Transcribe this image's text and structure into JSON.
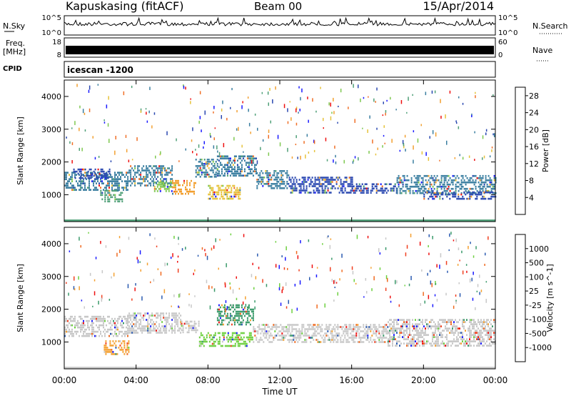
{
  "header": {
    "station": "Kapuskasing (fitACF)",
    "beam": "Beam 00",
    "date": "15/Apr/2014"
  },
  "aux_panels": {
    "nsky_label": "N.Sky",
    "nsky_ticks": [
      "10^5",
      "10^0"
    ],
    "nsearch_label": "N.Search",
    "freq_label": "Freq.",
    "freq_unit": "[MHz]",
    "freq_ticks": [
      "18",
      "8"
    ],
    "nave_ticks": [
      "60",
      "0"
    ],
    "nave_label": "Nave",
    "cpid_label": "CPID",
    "cpid_value": "icescan -1200"
  },
  "colors": {
    "power_scale": [
      "#1a1aff",
      "#2a48b0",
      "#3a7ea0",
      "#4fa078",
      "#7ec850",
      "#e6c23a",
      "#f2a030",
      "#f07028",
      "#ee1010"
    ],
    "velocity_scale": [
      "#ee1010",
      "#f04020",
      "#f06a20",
      "#f4a030",
      "#c8c8c8",
      "#c8c8c8",
      "#6ed040",
      "#3a9a6a",
      "#2a5ab0",
      "#1a1aff"
    ]
  },
  "chart_data": [
    {
      "type": "heatmap",
      "name": "power",
      "ylabel": "Slant Range [km]",
      "yticks": [
        "1000",
        "2000",
        "3000",
        "4000"
      ],
      "ylim": [
        180,
        4500
      ],
      "colorbar_label": "Power [dB]",
      "colorbar_ticks": [
        "4",
        "8",
        "12",
        "16",
        "20",
        "24",
        "28"
      ],
      "clim": [
        0,
        30
      ],
      "regions": [
        {
          "t": [
            0,
            3.5
          ],
          "range": [
            1150,
            1700
          ],
          "value": 8
        },
        {
          "t": [
            0.5,
            2.5
          ],
          "range": [
            1500,
            1800
          ],
          "value": 6
        },
        {
          "t": [
            2,
            3.2
          ],
          "range": [
            800,
            1150
          ],
          "value": 10
        },
        {
          "t": [
            3.5,
            6
          ],
          "range": [
            1300,
            1900
          ],
          "value": 7
        },
        {
          "t": [
            5,
            6
          ],
          "range": [
            1100,
            1400
          ],
          "value": 14
        },
        {
          "t": [
            6,
            7.3
          ],
          "range": [
            1000,
            1450
          ],
          "value": 22
        },
        {
          "t": [
            7.3,
            8.5
          ],
          "range": [
            1550,
            2100
          ],
          "value": 9
        },
        {
          "t": [
            8,
            9.8
          ],
          "range": [
            850,
            1300
          ],
          "value": 18
        },
        {
          "t": [
            8.5,
            10.7
          ],
          "range": [
            1600,
            2200
          ],
          "value": 7
        },
        {
          "t": [
            10.7,
            12.5
          ],
          "range": [
            1200,
            1750
          ],
          "value": 8
        },
        {
          "t": [
            12.5,
            16
          ],
          "range": [
            1050,
            1550
          ],
          "value": 6
        },
        {
          "t": [
            16,
            18.5
          ],
          "range": [
            1050,
            1350
          ],
          "value": 5
        },
        {
          "t": [
            18.5,
            24
          ],
          "range": [
            1050,
            1600
          ],
          "value": 7
        },
        {
          "t": [
            20,
            24
          ],
          "range": [
            900,
            1100
          ],
          "value": 6
        }
      ],
      "ground_scatter_km": 200
    },
    {
      "type": "heatmap",
      "name": "velocity",
      "ylabel": "Slant Range [km]",
      "yticks": [
        "1000",
        "2000",
        "3000",
        "4000"
      ],
      "ylim": [
        180,
        4500
      ],
      "colorbar_label": "Velocity [m s^-1]",
      "colorbar_ticks": [
        "1000",
        "500",
        "100",
        "25",
        "-25",
        "-100",
        "-500",
        "-1000"
      ],
      "regions": [
        {
          "t": [
            0,
            3.5
          ],
          "range": [
            1150,
            1800
          ],
          "value": 0
        },
        {
          "t": [
            2.2,
            3.6
          ],
          "range": [
            650,
            1050
          ],
          "value": -300
        },
        {
          "t": [
            3.5,
            6.5
          ],
          "range": [
            1250,
            1900
          ],
          "value": -80
        },
        {
          "t": [
            6.5,
            7.5
          ],
          "range": [
            1300,
            1650
          ],
          "value": -20
        },
        {
          "t": [
            7.5,
            10.5
          ],
          "range": [
            850,
            1300
          ],
          "value": 60
        },
        {
          "t": [
            8.5,
            10.5
          ],
          "range": [
            1550,
            2150
          ],
          "value": 300
        },
        {
          "t": [
            10.5,
            18
          ],
          "range": [
            1000,
            1550
          ],
          "value": 0
        },
        {
          "t": [
            18,
            24
          ],
          "range": [
            900,
            1700
          ],
          "value": 0
        }
      ],
      "ground_scatter_km": 200
    }
  ],
  "xaxis": {
    "label": "Time UT",
    "ticks": [
      "00:00",
      "04:00",
      "08:00",
      "12:00",
      "16:00",
      "20:00",
      "00:00"
    ],
    "xlim": [
      0,
      24
    ]
  }
}
